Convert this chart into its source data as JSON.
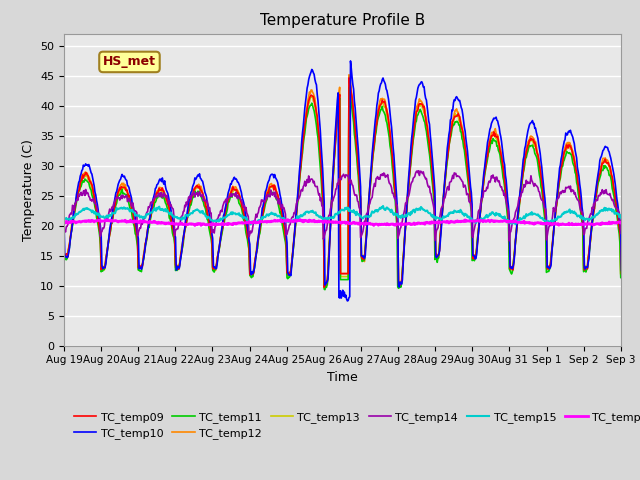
{
  "title": "Temperature Profile B",
  "xlabel": "Time",
  "ylabel": "Temperature (C)",
  "ylim": [
    0,
    52
  ],
  "yticks": [
    0,
    5,
    10,
    15,
    20,
    25,
    30,
    35,
    40,
    45,
    50
  ],
  "xtick_labels": [
    "Aug 19",
    "Aug 20",
    "Aug 21",
    "Aug 22",
    "Aug 23",
    "Aug 24",
    "Aug 25",
    "Aug 26",
    "Aug 27",
    "Aug 28",
    "Aug 29",
    "Aug 30",
    "Aug 31",
    "Sep 1",
    "Sep 2",
    "Sep 3"
  ],
  "bg_color": "#e8e8e8",
  "grid_color": "#ffffff",
  "annotation_text": "HS_met",
  "annotation_bg": "#ffff99",
  "annotation_border": "#a08020",
  "annotation_text_color": "#8b0000",
  "series_colors": {
    "TC_temp09": "#ff0000",
    "TC_temp10": "#0000ff",
    "TC_temp11": "#00cc00",
    "TC_temp12": "#ff8800",
    "TC_temp13": "#cccc00",
    "TC_temp14": "#9900aa",
    "TC_temp15": "#00cccc",
    "TC_temp16": "#ff00ff"
  },
  "series_linewidths": {
    "TC_temp09": 1.2,
    "TC_temp10": 1.2,
    "TC_temp11": 1.2,
    "TC_temp12": 1.2,
    "TC_temp13": 1.2,
    "TC_temp14": 1.2,
    "TC_temp15": 1.5,
    "TC_temp16": 2.0
  },
  "fig_width": 6.4,
  "fig_height": 4.8,
  "dpi": 100
}
